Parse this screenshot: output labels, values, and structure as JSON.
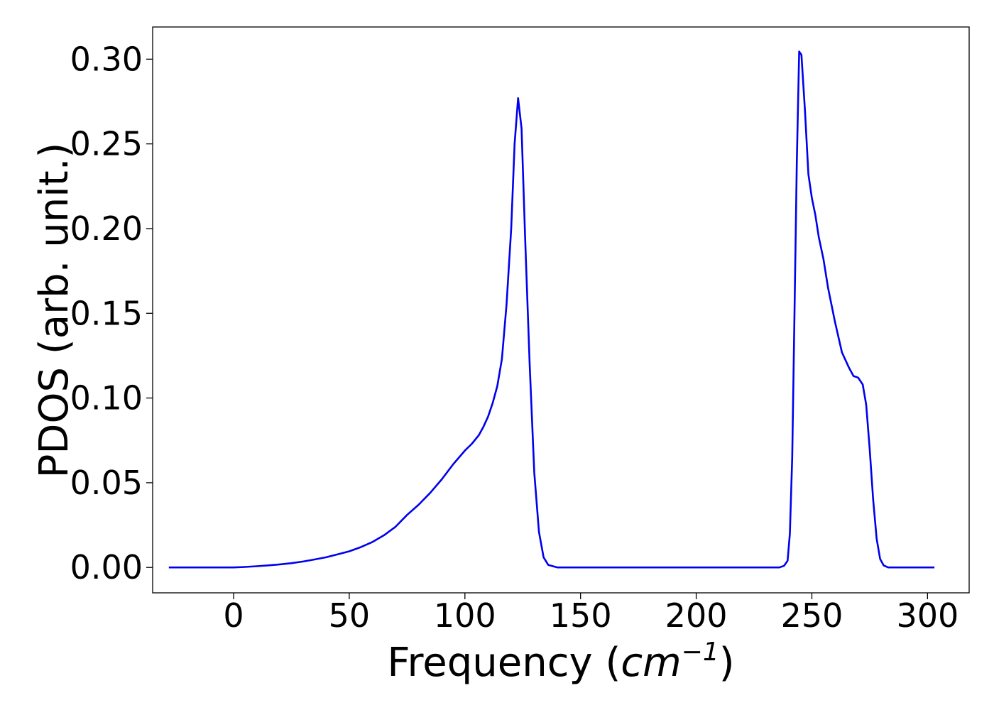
{
  "chart_data": {
    "type": "line",
    "title": "",
    "xlabel_main": "Frequency (",
    "xlabel_unit": "cm",
    "xlabel_exp": "−1",
    "xlabel_close": ")",
    "ylabel": "PDOS (arb. unit.)",
    "xlim": [
      -35,
      318
    ],
    "ylim": [
      -0.015,
      0.319
    ],
    "xticks": [
      0,
      50,
      100,
      150,
      200,
      250,
      300
    ],
    "xtick_labels": [
      "0",
      "50",
      "100",
      "150",
      "200",
      "250",
      "300"
    ],
    "yticks": [
      0.0,
      0.05,
      0.1,
      0.15,
      0.2,
      0.25,
      0.3
    ],
    "ytick_labels": [
      "0.00",
      "0.05",
      "0.10",
      "0.15",
      "0.20",
      "0.25",
      "0.30"
    ],
    "grid": false,
    "legend": "none",
    "series": [
      {
        "color": "#0000ee",
        "x": [
          -28,
          0,
          5,
          10,
          15,
          20,
          25,
          30,
          35,
          40,
          45,
          50,
          55,
          60,
          65,
          70,
          75,
          80,
          85,
          90,
          95,
          100,
          103,
          106,
          108,
          110,
          112,
          114,
          116,
          118,
          120,
          121.5,
          123,
          124.5,
          126,
          128,
          130,
          132,
          134,
          136,
          140,
          150,
          200,
          236,
          238,
          239.5,
          240.5,
          241.5,
          242.5,
          243.5,
          244.5,
          245.5,
          247,
          248.5,
          250,
          251.5,
          253,
          255,
          257,
          260,
          263,
          266,
          268,
          270,
          272,
          273.5,
          275,
          276.5,
          278,
          279.5,
          281,
          283,
          285,
          290,
          303
        ],
        "y": [
          0,
          0,
          0.0003,
          0.0007,
          0.0012,
          0.0018,
          0.0025,
          0.0035,
          0.0047,
          0.006,
          0.0077,
          0.0095,
          0.012,
          0.015,
          0.019,
          0.024,
          0.031,
          0.037,
          0.044,
          0.052,
          0.061,
          0.069,
          0.073,
          0.078,
          0.083,
          0.089,
          0.097,
          0.107,
          0.123,
          0.155,
          0.2,
          0.25,
          0.277,
          0.259,
          0.196,
          0.12,
          0.056,
          0.021,
          0.006,
          0.0015,
          0,
          0,
          0,
          0,
          0.001,
          0.004,
          0.02,
          0.065,
          0.15,
          0.24,
          0.3045,
          0.3025,
          0.27,
          0.232,
          0.218,
          0.208,
          0.195,
          0.182,
          0.165,
          0.145,
          0.127,
          0.118,
          0.113,
          0.112,
          0.108,
          0.096,
          0.07,
          0.04,
          0.017,
          0.005,
          0.0012,
          0,
          0,
          0,
          0
        ]
      }
    ]
  }
}
